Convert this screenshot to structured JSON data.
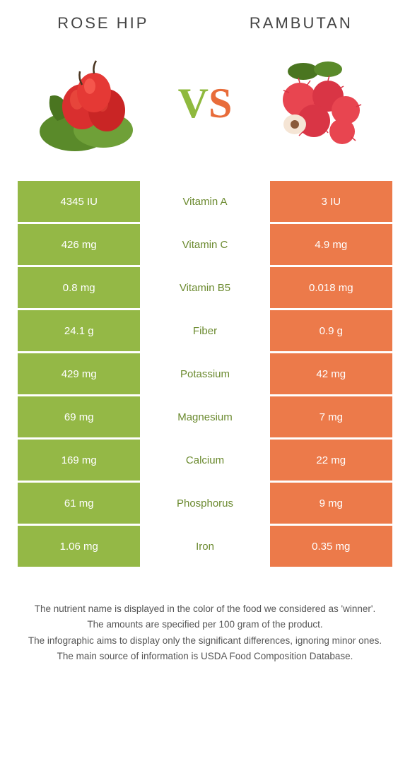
{
  "header": {
    "left_title": "Rose hip",
    "right_title": "Rambutan",
    "vs_v": "V",
    "vs_s": "S"
  },
  "colors": {
    "left_bg": "#94b846",
    "right_bg": "#ec7a4a",
    "left_winner_text": "#6b8a2f",
    "right_winner_text": "#d15a2a",
    "cell_text": "#ffffff"
  },
  "rows": [
    {
      "nutrient": "Vitamin A",
      "left": "4345 IU",
      "right": "3 IU",
      "winner": "left"
    },
    {
      "nutrient": "Vitamin C",
      "left": "426 mg",
      "right": "4.9 mg",
      "winner": "left"
    },
    {
      "nutrient": "Vitamin B5",
      "left": "0.8 mg",
      "right": "0.018 mg",
      "winner": "left"
    },
    {
      "nutrient": "Fiber",
      "left": "24.1 g",
      "right": "0.9 g",
      "winner": "left"
    },
    {
      "nutrient": "Potassium",
      "left": "429 mg",
      "right": "42 mg",
      "winner": "left"
    },
    {
      "nutrient": "Magnesium",
      "left": "69 mg",
      "right": "7 mg",
      "winner": "left"
    },
    {
      "nutrient": "Calcium",
      "left": "169 mg",
      "right": "22 mg",
      "winner": "left"
    },
    {
      "nutrient": "Phosphorus",
      "left": "61 mg",
      "right": "9 mg",
      "winner": "left"
    },
    {
      "nutrient": "Iron",
      "left": "1.06 mg",
      "right": "0.35 mg",
      "winner": "left"
    }
  ],
  "footer": {
    "line1": "The nutrient name is displayed in the color of the food we considered as 'winner'.",
    "line2": "The amounts are specified per 100 gram of the product.",
    "line3": "The infographic aims to display only the significant differences, ignoring minor ones.",
    "line4": "The main source of information is USDA Food Composition Database."
  }
}
